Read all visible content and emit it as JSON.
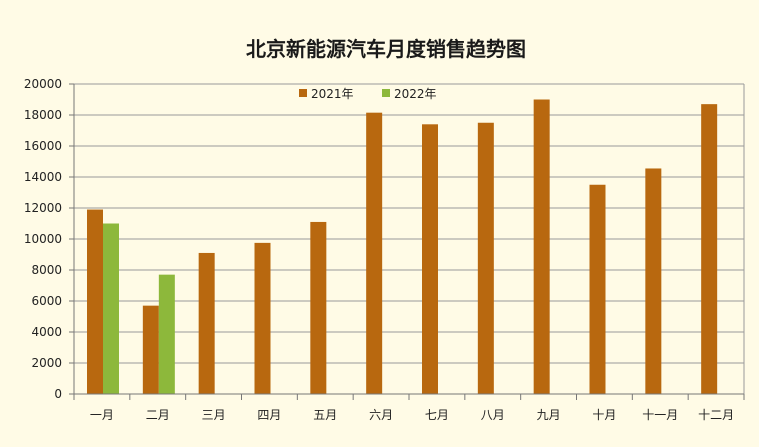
{
  "chart_data": {
    "type": "bar",
    "title": "北京新能源汽车月度销售趋势图",
    "xlabel": "",
    "ylabel": "",
    "categories": [
      "一月",
      "二月",
      "三月",
      "四月",
      "五月",
      "六月",
      "七月",
      "八月",
      "九月",
      "十月",
      "十一月",
      "十二月"
    ],
    "series": [
      {
        "name": "2021年",
        "color": "#b8680f",
        "values": [
          11900,
          5700,
          9100,
          9750,
          11100,
          18150,
          17400,
          17500,
          19000,
          13500,
          14550,
          18700
        ]
      },
      {
        "name": "2022年",
        "color": "#8db83b",
        "values": [
          11000,
          7700,
          null,
          null,
          null,
          null,
          null,
          null,
          null,
          null,
          null,
          null
        ]
      }
    ],
    "ylim": [
      0,
      20000
    ],
    "yticks": [
      0,
      2000,
      4000,
      6000,
      8000,
      10000,
      12000,
      14000,
      16000,
      18000,
      20000
    ],
    "grid": true,
    "legend": "top-center"
  }
}
